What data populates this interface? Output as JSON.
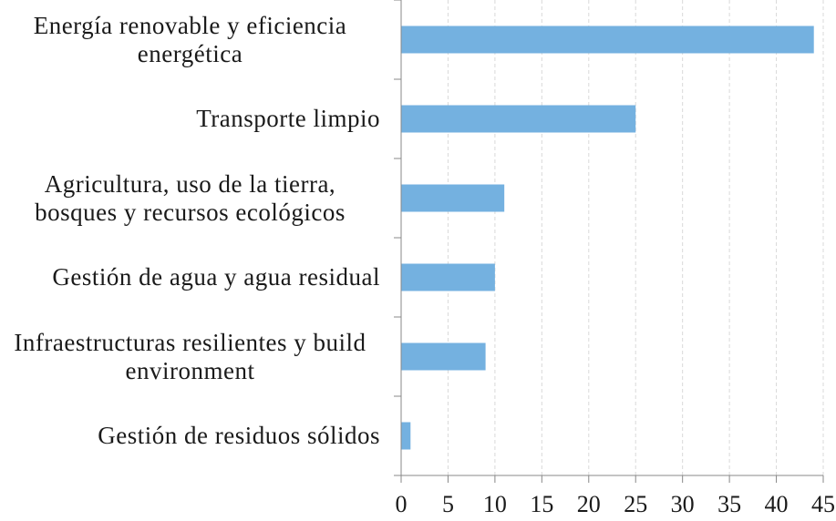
{
  "chart_data": {
    "type": "barh",
    "categories": [
      "Energía renovable y eficiencia energética",
      "Transporte limpio",
      "Agricultura, uso de la tierra, bosques y recursos ecológicos",
      "Gestión de agua y agua residual",
      "Infraestructuras resilientes y build environment",
      "Gestión de residuos sólidos"
    ],
    "values": [
      44,
      25,
      11,
      10,
      9,
      1
    ],
    "color": "#74b1e0",
    "xlim": [
      0,
      45
    ],
    "xticks": [
      0,
      5,
      10,
      15,
      20,
      25,
      30,
      35,
      40,
      45
    ],
    "grid": true
  }
}
